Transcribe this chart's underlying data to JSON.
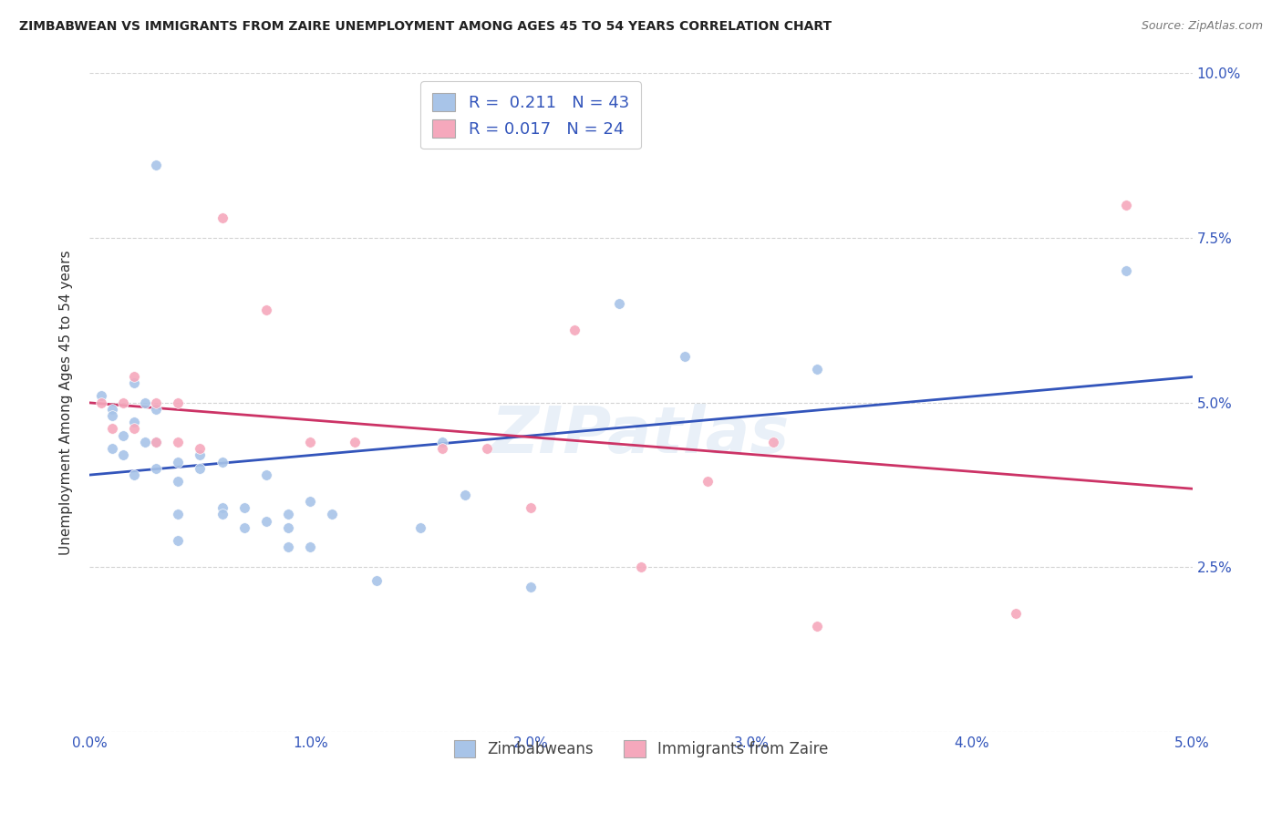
{
  "title": "ZIMBABWEAN VS IMMIGRANTS FROM ZAIRE UNEMPLOYMENT AMONG AGES 45 TO 54 YEARS CORRELATION CHART",
  "source": "Source: ZipAtlas.com",
  "ylabel": "Unemployment Among Ages 45 to 54 years",
  "xlim": [
    0.0,
    0.05
  ],
  "ylim": [
    0.0,
    0.1
  ],
  "xticks": [
    0.0,
    0.01,
    0.02,
    0.03,
    0.04,
    0.05
  ],
  "yticks": [
    0.0,
    0.025,
    0.05,
    0.075,
    0.1
  ],
  "xtick_labels": [
    "0.0%",
    "1.0%",
    "2.0%",
    "3.0%",
    "4.0%",
    "5.0%"
  ],
  "ytick_labels_right": [
    "",
    "2.5%",
    "5.0%",
    "7.5%",
    "10.0%"
  ],
  "legend1_R": "0.211",
  "legend1_N": "43",
  "legend2_R": "0.017",
  "legend2_N": "24",
  "legend1_label": "Zimbabweans",
  "legend2_label": "Immigrants from Zaire",
  "blue_color": "#a8c4e8",
  "pink_color": "#f5a8bc",
  "blue_line_color": "#3355bb",
  "pink_line_color": "#cc3366",
  "dot_size": 70,
  "blue_dots_x": [
    0.0005,
    0.001,
    0.001,
    0.001,
    0.0015,
    0.0015,
    0.002,
    0.002,
    0.002,
    0.0025,
    0.0025,
    0.003,
    0.003,
    0.003,
    0.003,
    0.004,
    0.004,
    0.004,
    0.004,
    0.005,
    0.005,
    0.006,
    0.006,
    0.006,
    0.007,
    0.007,
    0.008,
    0.008,
    0.009,
    0.009,
    0.009,
    0.01,
    0.01,
    0.011,
    0.013,
    0.015,
    0.016,
    0.017,
    0.02,
    0.024,
    0.027,
    0.033,
    0.047
  ],
  "blue_dots_y": [
    0.051,
    0.049,
    0.043,
    0.048,
    0.042,
    0.045,
    0.053,
    0.047,
    0.039,
    0.044,
    0.05,
    0.049,
    0.044,
    0.04,
    0.086,
    0.038,
    0.041,
    0.033,
    0.029,
    0.042,
    0.04,
    0.034,
    0.033,
    0.041,
    0.031,
    0.034,
    0.032,
    0.039,
    0.031,
    0.033,
    0.028,
    0.035,
    0.028,
    0.033,
    0.023,
    0.031,
    0.044,
    0.036,
    0.022,
    0.065,
    0.057,
    0.055,
    0.07
  ],
  "pink_dots_x": [
    0.0005,
    0.001,
    0.0015,
    0.002,
    0.002,
    0.003,
    0.003,
    0.004,
    0.004,
    0.005,
    0.006,
    0.008,
    0.01,
    0.012,
    0.016,
    0.018,
    0.02,
    0.022,
    0.025,
    0.028,
    0.031,
    0.033,
    0.042,
    0.047
  ],
  "pink_dots_y": [
    0.05,
    0.046,
    0.05,
    0.054,
    0.046,
    0.05,
    0.044,
    0.044,
    0.05,
    0.043,
    0.078,
    0.064,
    0.044,
    0.044,
    0.043,
    0.043,
    0.034,
    0.061,
    0.025,
    0.038,
    0.044,
    0.016,
    0.018,
    0.08
  ],
  "watermark": "ZIPatlas",
  "background_color": "#ffffff",
  "grid_color": "#c8c8c8"
}
